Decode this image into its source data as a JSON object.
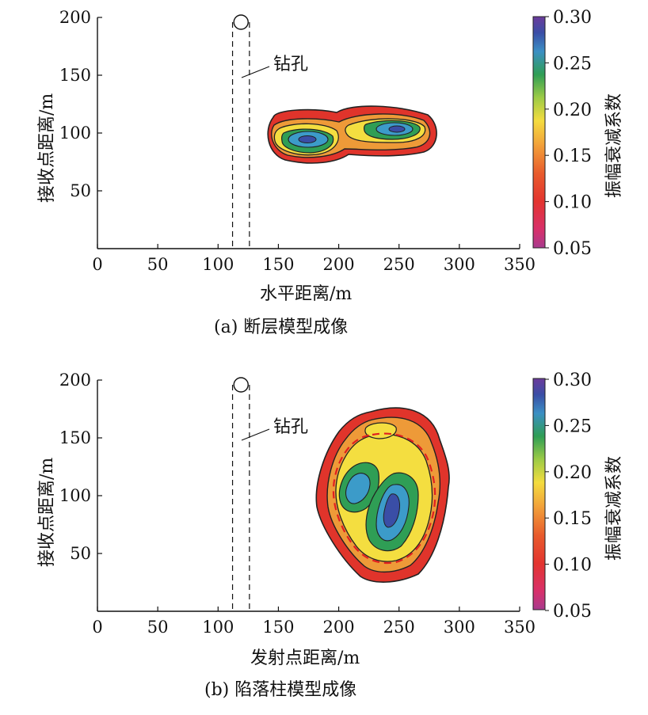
{
  "chart_data": [
    {
      "type": "heatmap",
      "caption": "(a)  断层模型成像",
      "xlabel": "水平距离/m",
      "ylabel": "接收点距离/m",
      "xlim": [
        0,
        350
      ],
      "ylim": [
        0,
        200
      ],
      "xticks": [
        0,
        50,
        100,
        150,
        200,
        250,
        300,
        350
      ],
      "yticks": [
        50,
        100,
        150,
        200
      ],
      "annotation": "钻孔",
      "borehole_x": [
        112,
        126
      ],
      "colorbar": {
        "label": "振幅衰减系数",
        "min": 0.05,
        "max": 0.3,
        "ticks": [
          "0.30",
          "0.25",
          "0.20",
          "0.15",
          "0.10",
          "0.05"
        ]
      },
      "anomalies": [
        {
          "cx": 175,
          "cy": 95,
          "peak": 0.26
        },
        {
          "cx": 250,
          "cy": 104,
          "peak": 0.25
        }
      ]
    },
    {
      "type": "heatmap",
      "caption": "(b)  陷落柱模型成像",
      "xlabel": "发射点距离/m",
      "ylabel": "接收点距离/m",
      "xlim": [
        0,
        350
      ],
      "ylim": [
        0,
        200
      ],
      "xticks": [
        0,
        50,
        100,
        150,
        200,
        250,
        300,
        350
      ],
      "yticks": [
        50,
        100,
        150,
        200
      ],
      "annotation": "钻孔",
      "borehole_x": [
        112,
        126
      ],
      "colorbar": {
        "label": "振幅衰减系数",
        "min": 0.05,
        "max": 0.3,
        "ticks": [
          "0.30",
          "0.25",
          "0.20",
          "0.15",
          "0.10",
          "0.05"
        ]
      },
      "anomalies": [
        {
          "cx": 217,
          "cy": 106,
          "peak": 0.25
        },
        {
          "cx": 245,
          "cy": 88,
          "peak": 0.28
        }
      ]
    }
  ],
  "colors": {
    "scale": [
      "#b53a8c",
      "#e0334f",
      "#e8652f",
      "#f0a63a",
      "#f4e03e",
      "#8cc845",
      "#2e9e54",
      "#3a9cc8",
      "#3b4fa6",
      "#6a3a9a"
    ],
    "contour_line": "#222222",
    "dashed_boundary": "#e02020"
  }
}
